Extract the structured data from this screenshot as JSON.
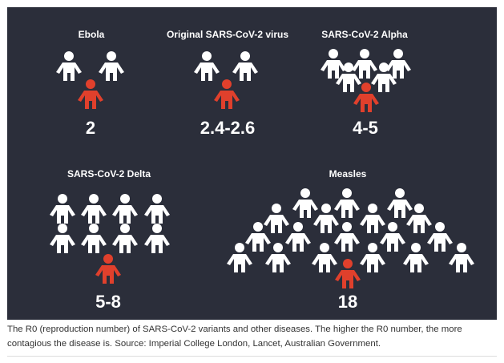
{
  "panels": [
    {
      "title": "Ebola",
      "value": "2"
    },
    {
      "title": "Original SARS-CoV-2 virus",
      "value": "2.4-2.6"
    },
    {
      "title": "SARS-CoV-2 Alpha",
      "value": "4-5"
    },
    {
      "title": "SARS-CoV-2 Delta",
      "value": "5-8"
    },
    {
      "title": "Measles",
      "value": "18"
    }
  ],
  "caption": {
    "text": "The R0 (reproduction number) of SARS-CoV-2 variants and other diseases. The higher the R0 number, the more contagious the disease is. Source: Imperial College London, Lancet, Australian Government."
  },
  "colors": {
    "background": "#2b2e3a",
    "healthy": "#ffffff",
    "infected": "#e0402c"
  },
  "icons": {
    "person": "person-icon"
  }
}
